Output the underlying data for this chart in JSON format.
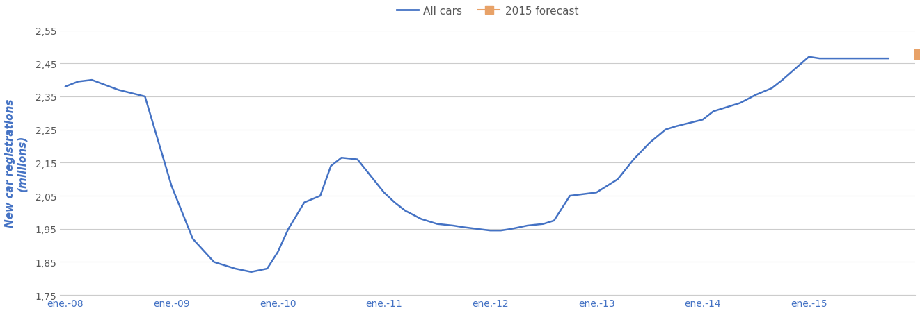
{
  "title": "",
  "ylabel": "New car registrations\n(millions)",
  "ylim": [
    1.75,
    2.55
  ],
  "yticks": [
    1.75,
    1.85,
    1.95,
    2.05,
    2.15,
    2.25,
    2.35,
    2.45,
    2.55
  ],
  "ytick_labels": [
    "1,75",
    "1,85",
    "1,95",
    "2,05",
    "2,15",
    "2,25",
    "2,35",
    "2,45",
    "2,55"
  ],
  "xtick_labels": [
    "ene.-08",
    "ene.-09",
    "ene.-10",
    "ene.-11",
    "ene.-12",
    "ene.-13",
    "ene.-14",
    "ene.-15"
  ],
  "line_color": "#4472C4",
  "forecast_color": "#E8A268",
  "forecast_value": 2.475,
  "x_values": [
    0,
    0.12,
    0.25,
    0.5,
    0.75,
    1.0,
    1.2,
    1.4,
    1.6,
    1.75,
    1.9,
    2.0,
    2.1,
    2.25,
    2.4,
    2.5,
    2.6,
    2.75,
    3.0,
    3.1,
    3.2,
    3.35,
    3.5,
    3.65,
    3.75,
    4.0,
    4.1,
    4.2,
    4.35,
    4.5,
    4.6,
    4.75,
    5.0,
    5.1,
    5.2,
    5.35,
    5.5,
    5.65,
    5.75,
    6.0,
    6.1,
    6.2,
    6.35,
    6.5,
    6.65,
    6.75,
    7.0,
    7.1,
    7.2,
    7.35,
    7.5,
    7.65,
    7.75
  ],
  "y_values": [
    2.38,
    2.395,
    2.4,
    2.37,
    2.35,
    2.08,
    1.92,
    1.85,
    1.83,
    1.82,
    1.83,
    1.88,
    1.95,
    2.03,
    2.05,
    2.14,
    2.165,
    2.16,
    2.06,
    2.03,
    2.005,
    1.98,
    1.965,
    1.96,
    1.955,
    1.945,
    1.945,
    1.95,
    1.96,
    1.965,
    1.975,
    2.05,
    2.06,
    2.08,
    2.1,
    2.16,
    2.21,
    2.25,
    2.26,
    2.28,
    2.305,
    2.315,
    2.33,
    2.355,
    2.375,
    2.4,
    2.47,
    2.465,
    2.465,
    2.465,
    2.465,
    2.465,
    2.465
  ],
  "legend_line_label": "All cars",
  "legend_marker_label": "2015 forecast",
  "background_color": "#ffffff",
  "grid_color": "#cccccc",
  "text_color": "#595959",
  "tick_color": "#4472C4",
  "label_color": "#4472C4",
  "label_fontsize": 11,
  "tick_fontsize": 10
}
